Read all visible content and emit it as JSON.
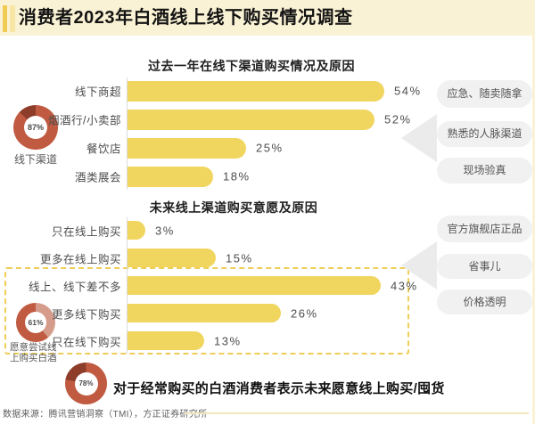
{
  "header": {
    "title": "消费者2023年白酒线上线下购买情况调查"
  },
  "chart_data": [
    {
      "type": "bar",
      "orientation": "horizontal",
      "title": "过去一年在线下渠道购买情况及原因",
      "categories": [
        "线下商超",
        "烟酒行/小卖部",
        "餐饮店",
        "酒类展会"
      ],
      "values": [
        54,
        52,
        25,
        18
      ],
      "unit": "%",
      "xlim": [
        0,
        60
      ],
      "grid": false,
      "donut": {
        "value": 87,
        "unit": "%",
        "label": "线下渠道"
      },
      "reasons": [
        "应急、随卖随拿",
        "熟悉的人脉渠道",
        "现场验真"
      ]
    },
    {
      "type": "bar",
      "orientation": "horizontal",
      "title": "未来线上渠道购买意愿及原因",
      "categories": [
        "只在线上购买",
        "更多在线上购买",
        "线上、线下差不多",
        "更多线下购买",
        "只在线下购买"
      ],
      "values": [
        3,
        15,
        43,
        26,
        13
      ],
      "unit": "%",
      "xlim": [
        0,
        50
      ],
      "grid": false,
      "donut": {
        "value": 61,
        "unit": "%",
        "label": "愿意尝试线上购买白酒"
      },
      "reasons": [
        "官方旗舰店正品",
        "省事儿",
        "价格透明"
      ],
      "highlighted_categories": [
        "线上、线下差不多",
        "更多线下购买",
        "只在线下购买"
      ]
    },
    {
      "type": "donut",
      "value": 78,
      "unit": "%",
      "note": "对于经常购买的白酒消费者表示未来愿意线上购买/囤货"
    }
  ],
  "footer": {
    "source": "数据来源：腾讯营销洞察（TMI），方正证券研究所"
  },
  "colors": {
    "header_bg": "#FAF2D4",
    "accent": "#EFCB52",
    "accent_light": "#F7E6A5",
    "bar": "#F0D55F",
    "donut_main": "#C05A41",
    "donut_dark": "#8E3D2B",
    "donut_light": "#D69C8B",
    "pill_bg": "#F1F1F1",
    "arrow": "#EBEBEB",
    "dashed_box": "#EFCD56"
  }
}
